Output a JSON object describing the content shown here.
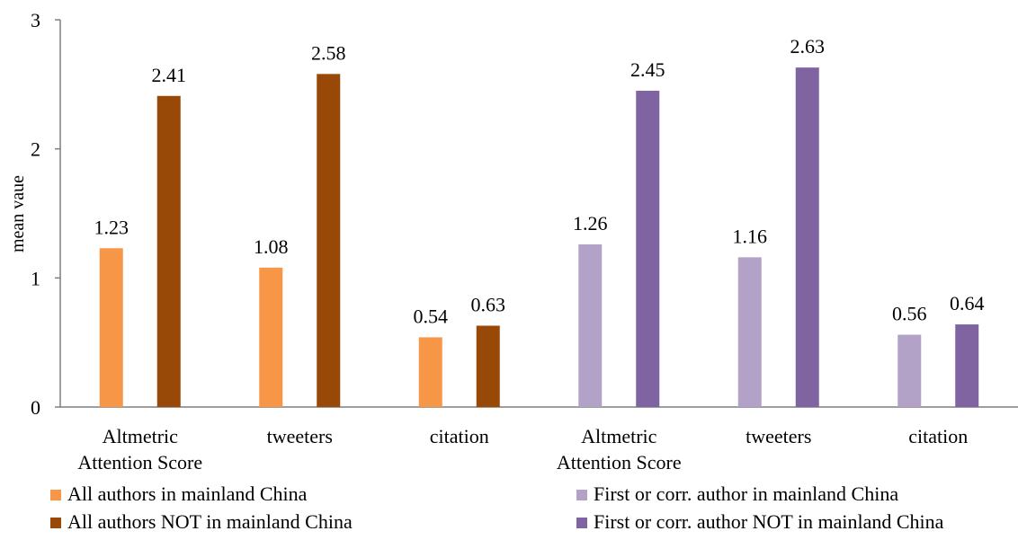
{
  "chart_data": {
    "type": "bar",
    "ylabel": "mean vaue",
    "ylim": [
      0,
      3
    ],
    "yticks": [
      0,
      1,
      2,
      3
    ],
    "grid": false,
    "legend_position": "bottom",
    "groups": [
      {
        "category": [
          "Altmetric",
          "Attention Score"
        ],
        "series": [
          0,
          1
        ]
      },
      {
        "category": [
          "tweeters"
        ],
        "series": [
          0,
          1
        ]
      },
      {
        "category": [
          "citation"
        ],
        "series": [
          0,
          1
        ]
      },
      {
        "category": [
          "Altmetric",
          "Attention Score"
        ],
        "series": [
          2,
          3
        ]
      },
      {
        "category": [
          "tweeters"
        ],
        "series": [
          2,
          3
        ]
      },
      {
        "category": [
          "citation"
        ],
        "series": [
          2,
          3
        ]
      }
    ],
    "series": [
      {
        "name": "All authors in mainland China",
        "color": "#F79646",
        "values": [
          1.23,
          1.08,
          0.54,
          null,
          null,
          null
        ],
        "labels": [
          "1.23",
          "1.08",
          "0.54",
          "",
          "",
          ""
        ]
      },
      {
        "name": "All authors NOT in mainland China",
        "color": "#984807",
        "values": [
          2.41,
          2.58,
          0.63,
          null,
          null,
          null
        ],
        "labels": [
          "2.41",
          "2.58",
          "0.63",
          "",
          "",
          ""
        ]
      },
      {
        "name": "First or corr. author in mainland China",
        "color": "#B3A2C7",
        "values": [
          null,
          null,
          null,
          1.26,
          1.16,
          0.56
        ],
        "labels": [
          "",
          "",
          "",
          "1.26",
          "1.16",
          "0.56"
        ]
      },
      {
        "name": "First or corr. author NOT in mainland China",
        "color": "#8064A2",
        "values": [
          null,
          null,
          null,
          2.45,
          2.63,
          0.64
        ],
        "labels": [
          "",
          "",
          "",
          "2.45",
          "2.63",
          "0.64"
        ]
      }
    ]
  }
}
